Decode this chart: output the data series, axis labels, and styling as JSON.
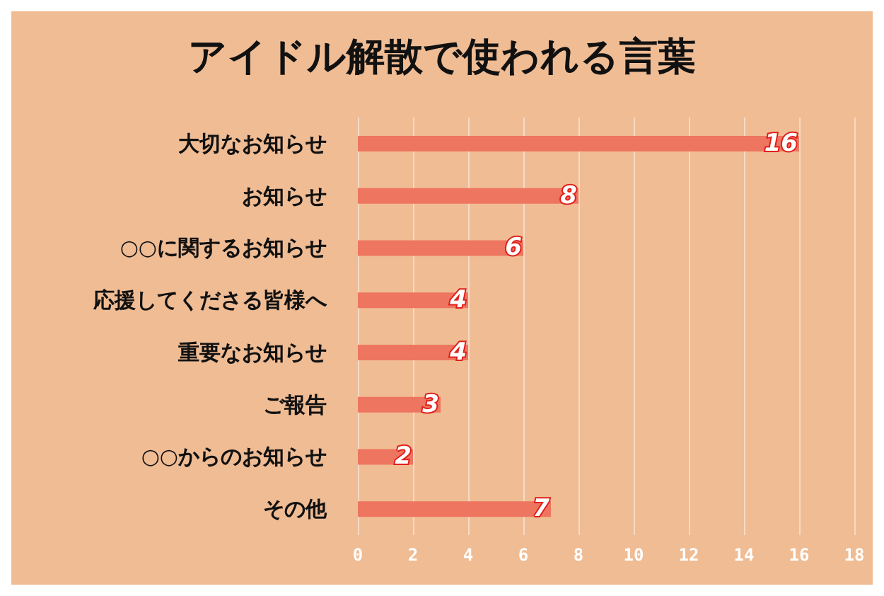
{
  "chart_data": {
    "type": "bar",
    "orientation": "horizontal",
    "title": "アイドル解散で使われる言葉",
    "categories": [
      "大切なお知らせ",
      "お知らせ",
      "○○に関するお知らせ",
      "応援してくださる皆様へ",
      "重要なお知らせ",
      "ご報告",
      "○○からのお知らせ",
      "その他"
    ],
    "values": [
      16,
      8,
      6,
      4,
      4,
      3,
      2,
      7
    ],
    "color": "#ee7560",
    "xlim": [
      0,
      18
    ],
    "xticks": [
      0,
      2,
      4,
      6,
      8,
      10,
      12,
      14,
      16,
      18
    ],
    "grid": "x",
    "data_labels": true
  }
}
